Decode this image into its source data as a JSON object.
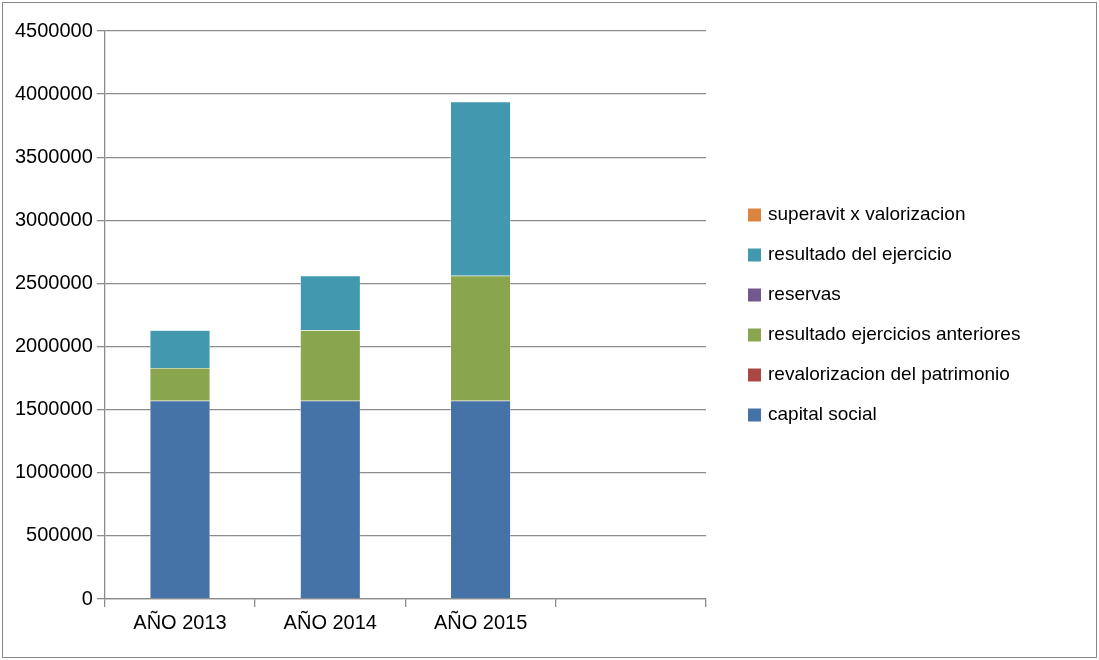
{
  "chart_data": {
    "type": "bar",
    "stacked": true,
    "categories": [
      "AÑO 2013",
      "AÑO 2014",
      "AÑO 2015",
      null
    ],
    "series": [
      {
        "name": "capital social",
        "color": "#4572a7",
        "values": [
          1570000,
          1570000,
          1570000,
          null
        ]
      },
      {
        "name": "revalorizacion del patrimonio",
        "color": "#aa4643",
        "values": [
          0,
          0,
          0,
          null
        ]
      },
      {
        "name": "resultado ejercicios anteriores",
        "color": "#89a54e",
        "values": [
          260000,
          560000,
          990000,
          null
        ]
      },
      {
        "name": "reservas",
        "color": "#71588f",
        "values": [
          0,
          0,
          0,
          null
        ]
      },
      {
        "name": "resultado del ejercicio",
        "color": "#4198af",
        "values": [
          300000,
          430000,
          1380000,
          null
        ]
      },
      {
        "name": "superavit x valorizacion",
        "color": "#db843d",
        "values": [
          0,
          0,
          0,
          null
        ]
      }
    ],
    "ylim": [
      0,
      4500000
    ],
    "yticks": [
      0,
      500000,
      1000000,
      1500000,
      2000000,
      2500000,
      3000000,
      3500000,
      4000000,
      4500000
    ],
    "grid": "y",
    "legend": "right"
  }
}
